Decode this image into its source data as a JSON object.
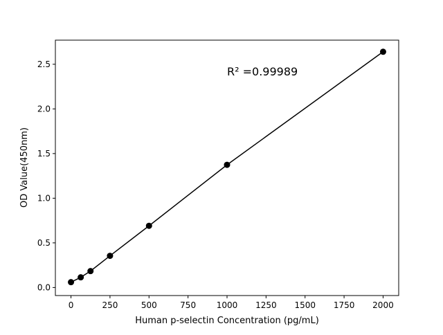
{
  "chart_data": {
    "type": "line",
    "title": "",
    "xlabel": "Human p-selectin Concentration (pg/mL)",
    "ylabel": "OD Value(450nm)",
    "xlim": [
      -100,
      2100
    ],
    "ylim": [
      -0.09,
      2.77
    ],
    "xticks": [
      0,
      250,
      500,
      750,
      1000,
      1250,
      1500,
      1750,
      2000
    ],
    "yticks": [
      0.0,
      0.5,
      1.0,
      1.5,
      2.0,
      2.5
    ],
    "xtick_labels": [
      "0",
      "250",
      "500",
      "750",
      "1000",
      "1250",
      "1500",
      "1750",
      "2000"
    ],
    "ytick_labels": [
      "0.0",
      "0.5",
      "1.0",
      "1.5",
      "2.0",
      "2.5"
    ],
    "grid": false,
    "annotation": "R² =0.99989",
    "series": [
      {
        "x": [
          0,
          62.5,
          125,
          250,
          500,
          1000,
          2000
        ],
        "y": [
          0.06,
          0.114,
          0.184,
          0.355,
          0.691,
          1.374,
          2.64
        ],
        "color": "#000000",
        "marker": "circle"
      }
    ]
  }
}
